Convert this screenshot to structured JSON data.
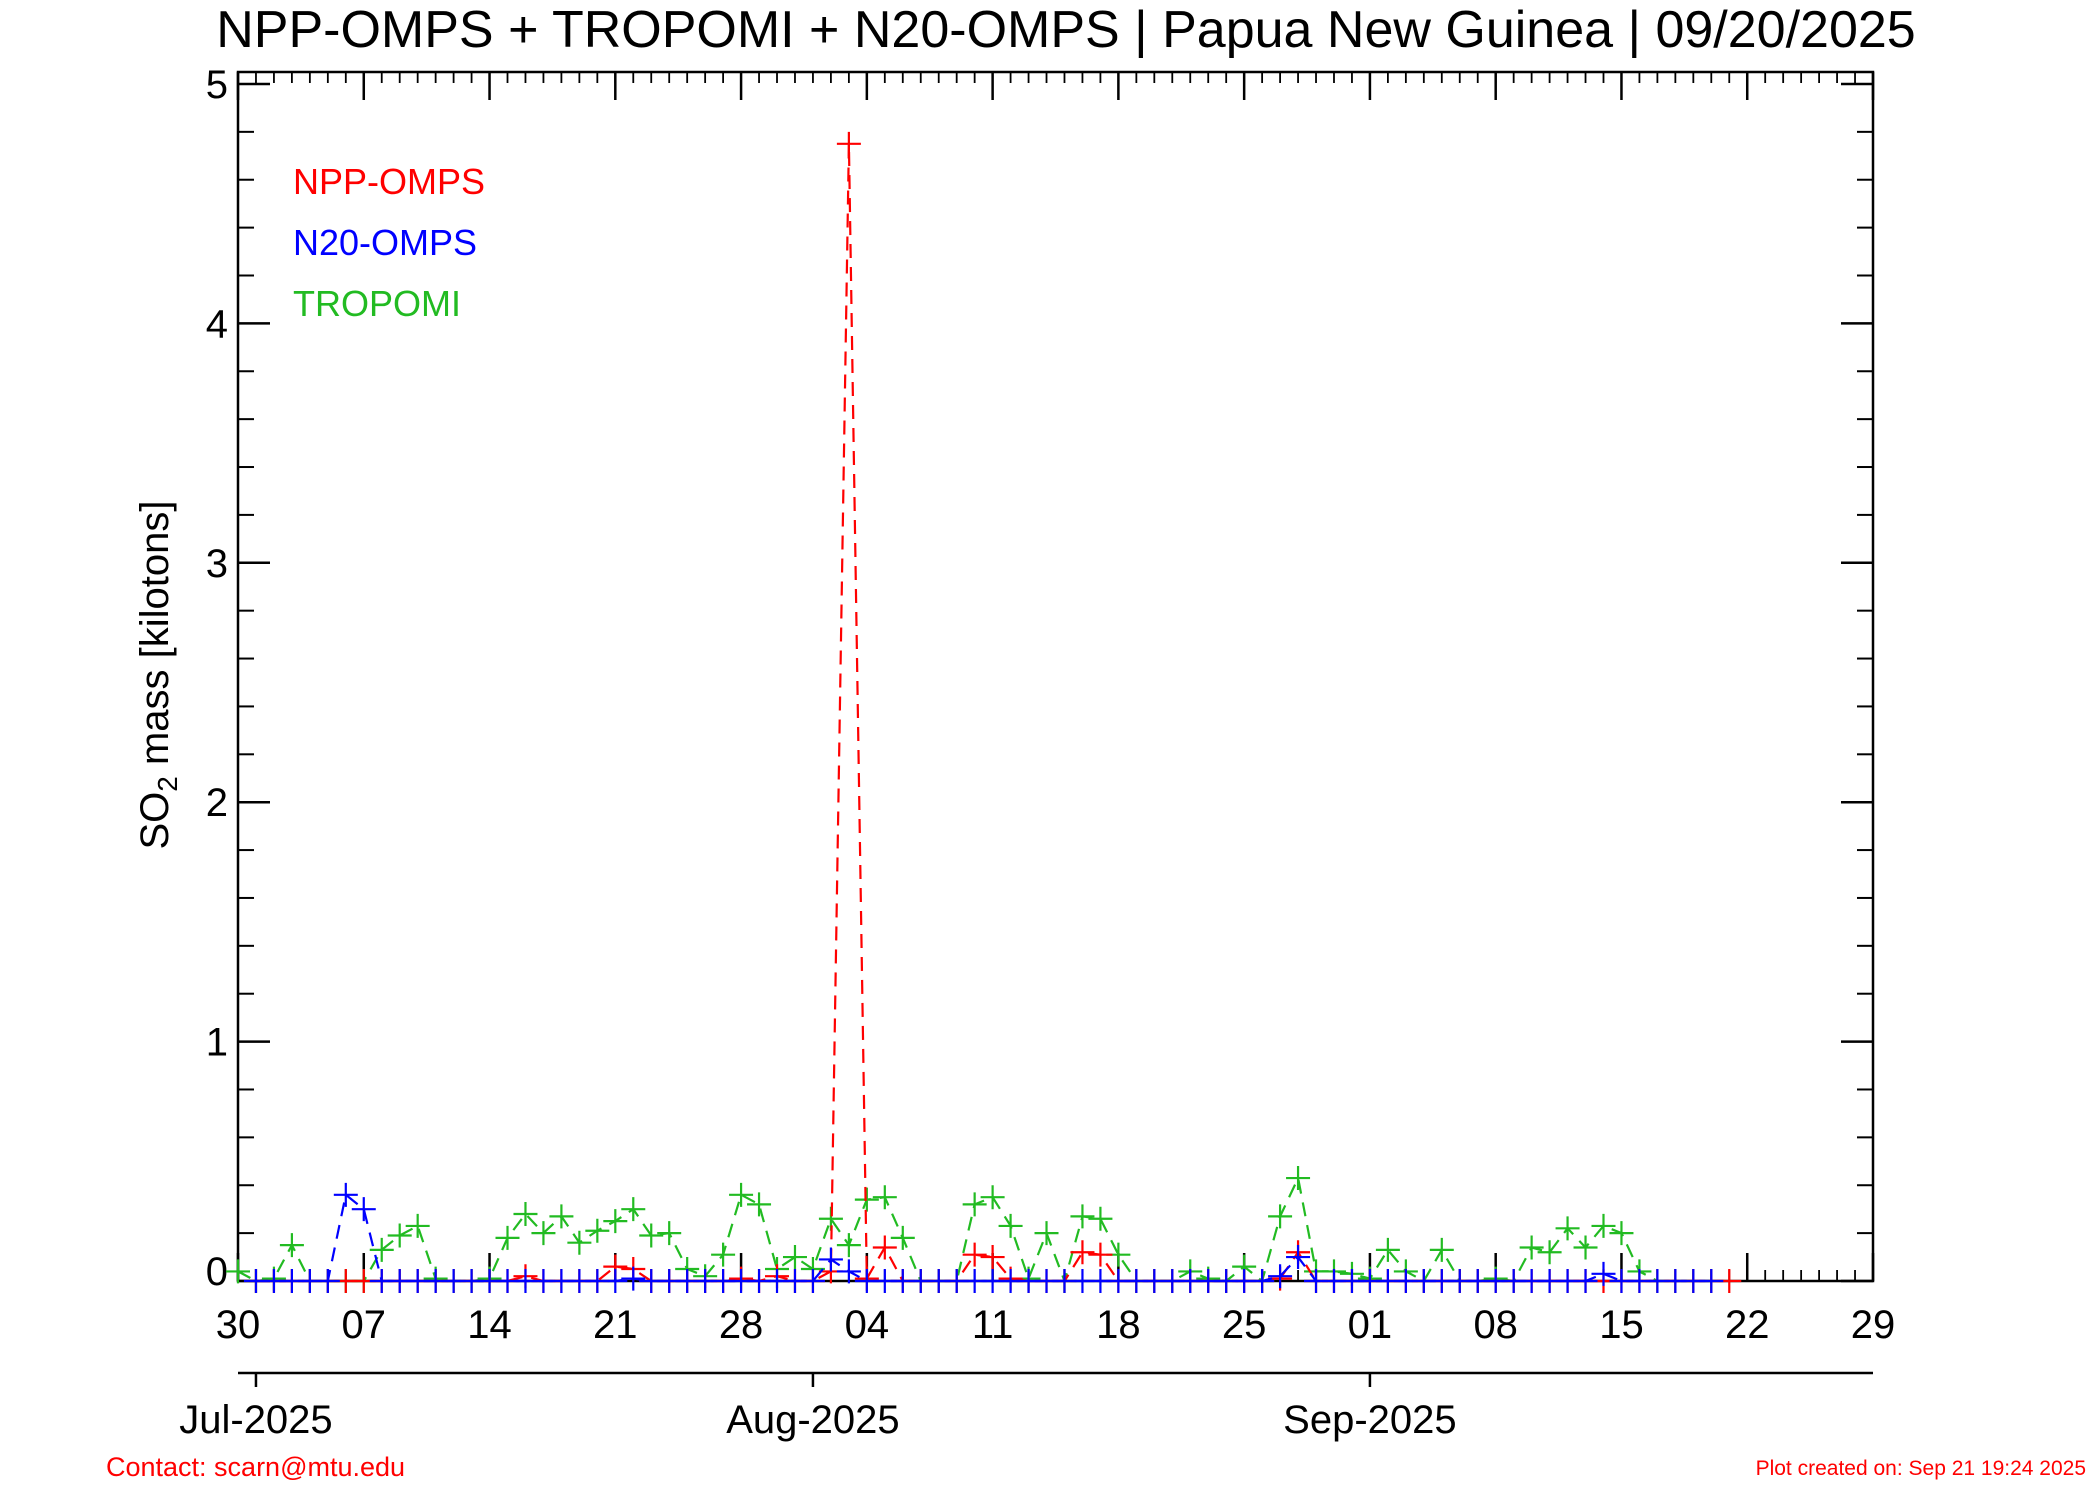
{
  "colors": {
    "npp": "#ff0000",
    "n20": "#0000ff",
    "tropomi": "#22bb22",
    "footer": "#ff0000"
  },
  "chart_data": {
    "type": "line",
    "title": "NPP-OMPS + TROPOMI + N20-OMPS | Papua New Guinea | 09/20/2025",
    "ylabel_main": "SO",
    "ylabel_sub": "2",
    "ylabel_rest": " mass [kilotons]",
    "ylim": [
      0,
      5.05
    ],
    "yticks": [
      "0",
      "1",
      "2",
      "3",
      "4",
      "5"
    ],
    "yticks_values": [
      0,
      1,
      2,
      3,
      4,
      5
    ],
    "xlim": [
      "2025-06-30",
      "2025-09-29"
    ],
    "xticks_day": [
      "30",
      "07",
      "14",
      "21",
      "28",
      "04",
      "11",
      "18",
      "25",
      "01",
      "08",
      "15",
      "22",
      "29"
    ],
    "xticks_dates": [
      "2025-06-30",
      "2025-07-07",
      "2025-07-14",
      "2025-07-21",
      "2025-07-28",
      "2025-08-04",
      "2025-08-11",
      "2025-08-18",
      "2025-08-25",
      "2025-09-01",
      "2025-09-08",
      "2025-09-15",
      "2025-09-22",
      "2025-09-29"
    ],
    "month_labels": [
      "Jul-2025",
      "Aug-2025",
      "Sep-2025"
    ],
    "month_dates": [
      "2025-07-01",
      "2025-08-01",
      "2025-09-01"
    ],
    "grid": false,
    "legend_position": "top-left",
    "series": [
      {
        "name": "NPP-OMPS",
        "color": "#ff0000",
        "points": [
          [
            "2025-07-01",
            0
          ],
          [
            "2025-07-02",
            0
          ],
          [
            "2025-07-03",
            0
          ],
          [
            "2025-07-04",
            0
          ],
          [
            "2025-07-05",
            0
          ],
          [
            "2025-07-06",
            0
          ],
          [
            "2025-07-07",
            0
          ],
          [
            "2025-07-08",
            0
          ],
          [
            "2025-07-09",
            0
          ],
          [
            "2025-07-10",
            0
          ],
          [
            "2025-07-11",
            0
          ],
          [
            "2025-07-12",
            0
          ],
          [
            "2025-07-13",
            0
          ],
          [
            "2025-07-14",
            0
          ],
          [
            "2025-07-15",
            0
          ],
          [
            "2025-07-16",
            0.02
          ],
          [
            "2025-07-17",
            0
          ],
          [
            "2025-07-18",
            0
          ],
          [
            "2025-07-19",
            0
          ],
          [
            "2025-07-20",
            0
          ],
          [
            "2025-07-21",
            0.06
          ],
          [
            "2025-07-22",
            0.05
          ],
          [
            "2025-07-23",
            0
          ],
          [
            "2025-07-24",
            0
          ],
          [
            "2025-07-25",
            0
          ],
          [
            "2025-07-26",
            0
          ],
          [
            "2025-07-27",
            0
          ],
          [
            "2025-07-28",
            0.01
          ],
          [
            "2025-07-29",
            0
          ],
          [
            "2025-07-30",
            0.02
          ],
          [
            "2025-07-31",
            0
          ],
          [
            "2025-08-01",
            0
          ],
          [
            "2025-08-02",
            0.04
          ],
          [
            "2025-08-03",
            4.75
          ],
          [
            "2025-08-04",
            0.01
          ],
          [
            "2025-08-05",
            0.14
          ],
          [
            "2025-08-06",
            0
          ],
          [
            "2025-08-07",
            0
          ],
          [
            "2025-08-08",
            0
          ],
          [
            "2025-08-09",
            0
          ],
          [
            "2025-08-10",
            0.11
          ],
          [
            "2025-08-11",
            0.1
          ],
          [
            "2025-08-12",
            0.01
          ],
          [
            "2025-08-13",
            0
          ],
          [
            "2025-08-14",
            0
          ],
          [
            "2025-08-15",
            0
          ],
          [
            "2025-08-16",
            0.12
          ],
          [
            "2025-08-17",
            0.11
          ],
          [
            "2025-08-18",
            0
          ],
          [
            "2025-08-19",
            0
          ],
          [
            "2025-08-20",
            0
          ],
          [
            "2025-08-21",
            0
          ],
          [
            "2025-08-22",
            0
          ],
          [
            "2025-08-23",
            0
          ],
          [
            "2025-08-24",
            0
          ],
          [
            "2025-08-25",
            0
          ],
          [
            "2025-08-26",
            0
          ],
          [
            "2025-08-27",
            0.01
          ],
          [
            "2025-08-28",
            0.12
          ],
          [
            "2025-08-29",
            0
          ],
          [
            "2025-08-30",
            0
          ],
          [
            "2025-08-31",
            0
          ],
          [
            "2025-09-01",
            0
          ],
          [
            "2025-09-02",
            0
          ],
          [
            "2025-09-03",
            0
          ],
          [
            "2025-09-04",
            0
          ],
          [
            "2025-09-05",
            0
          ],
          [
            "2025-09-06",
            0
          ],
          [
            "2025-09-07",
            0
          ],
          [
            "2025-09-08",
            0
          ],
          [
            "2025-09-09",
            0
          ],
          [
            "2025-09-10",
            0
          ],
          [
            "2025-09-11",
            0
          ],
          [
            "2025-09-12",
            0
          ],
          [
            "2025-09-13",
            0
          ],
          [
            "2025-09-14",
            0
          ],
          [
            "2025-09-15",
            0
          ],
          [
            "2025-09-16",
            0
          ],
          [
            "2025-09-17",
            0
          ],
          [
            "2025-09-18",
            0
          ],
          [
            "2025-09-19",
            0
          ],
          [
            "2025-09-20",
            0
          ],
          [
            "2025-09-21",
            0
          ]
        ]
      },
      {
        "name": "N20-OMPS",
        "color": "#0000ff",
        "points": [
          [
            "2025-07-01",
            0
          ],
          [
            "2025-07-02",
            0
          ],
          [
            "2025-07-03",
            0
          ],
          [
            "2025-07-04",
            0
          ],
          [
            "2025-07-05",
            0
          ],
          [
            "2025-07-06",
            0.36
          ],
          [
            "2025-07-07",
            0.3
          ],
          [
            "2025-07-08",
            0
          ],
          [
            "2025-07-09",
            0
          ],
          [
            "2025-07-10",
            0
          ],
          [
            "2025-07-11",
            0
          ],
          [
            "2025-07-12",
            0
          ],
          [
            "2025-07-13",
            0
          ],
          [
            "2025-07-14",
            0
          ],
          [
            "2025-07-15",
            0
          ],
          [
            "2025-07-16",
            0
          ],
          [
            "2025-07-17",
            0
          ],
          [
            "2025-07-18",
            0
          ],
          [
            "2025-07-19",
            0
          ],
          [
            "2025-07-20",
            0
          ],
          [
            "2025-07-21",
            0
          ],
          [
            "2025-07-22",
            0.01
          ],
          [
            "2025-07-23",
            0
          ],
          [
            "2025-07-24",
            0
          ],
          [
            "2025-07-25",
            0
          ],
          [
            "2025-07-26",
            0
          ],
          [
            "2025-07-27",
            0
          ],
          [
            "2025-07-28",
            0
          ],
          [
            "2025-07-29",
            0
          ],
          [
            "2025-07-30",
            0
          ],
          [
            "2025-07-31",
            0
          ],
          [
            "2025-08-01",
            0
          ],
          [
            "2025-08-02",
            0.09
          ],
          [
            "2025-08-03",
            0.04
          ],
          [
            "2025-08-04",
            0
          ],
          [
            "2025-08-05",
            0
          ],
          [
            "2025-08-06",
            0
          ],
          [
            "2025-08-07",
            0
          ],
          [
            "2025-08-08",
            0
          ],
          [
            "2025-08-09",
            0
          ],
          [
            "2025-08-10",
            0
          ],
          [
            "2025-08-11",
            0
          ],
          [
            "2025-08-12",
            0
          ],
          [
            "2025-08-13",
            0
          ],
          [
            "2025-08-14",
            0
          ],
          [
            "2025-08-15",
            0
          ],
          [
            "2025-08-16",
            0
          ],
          [
            "2025-08-17",
            0
          ],
          [
            "2025-08-18",
            0
          ],
          [
            "2025-08-19",
            0
          ],
          [
            "2025-08-20",
            0
          ],
          [
            "2025-08-21",
            0
          ],
          [
            "2025-08-22",
            0
          ],
          [
            "2025-08-23",
            0
          ],
          [
            "2025-08-24",
            0
          ],
          [
            "2025-08-25",
            0
          ],
          [
            "2025-08-26",
            0
          ],
          [
            "2025-08-27",
            0.02
          ],
          [
            "2025-08-28",
            0.1
          ],
          [
            "2025-08-29",
            0
          ],
          [
            "2025-08-30",
            0
          ],
          [
            "2025-08-31",
            0
          ],
          [
            "2025-09-01",
            0
          ],
          [
            "2025-09-02",
            0
          ],
          [
            "2025-09-03",
            0
          ],
          [
            "2025-09-04",
            0
          ],
          [
            "2025-09-05",
            0
          ],
          [
            "2025-09-06",
            0
          ],
          [
            "2025-09-07",
            0
          ],
          [
            "2025-09-08",
            0
          ],
          [
            "2025-09-09",
            0
          ],
          [
            "2025-09-10",
            0
          ],
          [
            "2025-09-11",
            0
          ],
          [
            "2025-09-12",
            0
          ],
          [
            "2025-09-13",
            0
          ],
          [
            "2025-09-14",
            0.03
          ],
          [
            "2025-09-15",
            0
          ],
          [
            "2025-09-16",
            0
          ],
          [
            "2025-09-17",
            0
          ],
          [
            "2025-09-18",
            0
          ],
          [
            "2025-09-19",
            0
          ],
          [
            "2025-09-20",
            0
          ]
        ]
      },
      {
        "name": "TROPOMI",
        "color": "#22bb22",
        "points": [
          [
            "2025-06-30",
            0.04
          ],
          [
            "2025-07-01",
            0
          ],
          [
            "2025-07-02",
            0.01
          ],
          [
            "2025-07-03",
            0.15
          ],
          [
            "2025-07-04",
            0
          ],
          [
            "2025-07-05",
            0
          ],
          [
            "2025-07-06",
            0
          ],
          [
            "2025-07-07",
            0
          ],
          [
            "2025-07-08",
            0.13
          ],
          [
            "2025-07-09",
            0.19
          ],
          [
            "2025-07-10",
            0.23
          ],
          [
            "2025-07-11",
            0.01
          ],
          [
            "2025-07-12",
            0
          ],
          [
            "2025-07-13",
            0
          ],
          [
            "2025-07-14",
            0.01
          ],
          [
            "2025-07-15",
            0.18
          ],
          [
            "2025-07-16",
            0.28
          ],
          [
            "2025-07-17",
            0.2
          ],
          [
            "2025-07-18",
            0.27
          ],
          [
            "2025-07-19",
            0.16
          ],
          [
            "2025-07-20",
            0.21
          ],
          [
            "2025-07-21",
            0.25
          ],
          [
            "2025-07-22",
            0.3
          ],
          [
            "2025-07-23",
            0.19
          ],
          [
            "2025-07-24",
            0.2
          ],
          [
            "2025-07-25",
            0.05
          ],
          [
            "2025-07-26",
            0.02
          ],
          [
            "2025-07-27",
            0.11
          ],
          [
            "2025-07-28",
            0.36
          ],
          [
            "2025-07-29",
            0.32
          ],
          [
            "2025-07-30",
            0.05
          ],
          [
            "2025-07-31",
            0.1
          ],
          [
            "2025-08-01",
            0.05
          ],
          [
            "2025-08-02",
            0.26
          ],
          [
            "2025-08-03",
            0.15
          ],
          [
            "2025-08-04",
            0.34
          ],
          [
            "2025-08-05",
            0.35
          ],
          [
            "2025-08-06",
            0.18
          ],
          [
            "2025-08-07",
            0
          ],
          [
            "2025-08-08",
            0
          ],
          [
            "2025-08-09",
            0
          ],
          [
            "2025-08-10",
            0.32
          ],
          [
            "2025-08-11",
            0.35
          ],
          [
            "2025-08-12",
            0.23
          ],
          [
            "2025-08-13",
            0.01
          ],
          [
            "2025-08-14",
            0.2
          ],
          [
            "2025-08-15",
            0
          ],
          [
            "2025-08-16",
            0.27
          ],
          [
            "2025-08-17",
            0.26
          ],
          [
            "2025-08-18",
            0.11
          ],
          [
            "2025-08-19",
            0
          ],
          [
            "2025-08-20",
            0
          ],
          [
            "2025-08-21",
            0
          ],
          [
            "2025-08-22",
            0.04
          ],
          [
            "2025-08-23",
            0.01
          ],
          [
            "2025-08-24",
            0
          ],
          [
            "2025-08-25",
            0.06
          ],
          [
            "2025-08-26",
            0
          ],
          [
            "2025-08-27",
            0.27
          ],
          [
            "2025-08-28",
            0.43
          ],
          [
            "2025-08-29",
            0.04
          ],
          [
            "2025-08-30",
            0.04
          ],
          [
            "2025-08-31",
            0.03
          ],
          [
            "2025-09-01",
            0.01
          ],
          [
            "2025-09-02",
            0.13
          ],
          [
            "2025-09-03",
            0.04
          ],
          [
            "2025-09-04",
            0
          ],
          [
            "2025-09-05",
            0.13
          ],
          [
            "2025-09-06",
            0
          ],
          [
            "2025-09-07",
            0
          ],
          [
            "2025-09-08",
            0.01
          ],
          [
            "2025-09-09",
            0
          ],
          [
            "2025-09-10",
            0.14
          ],
          [
            "2025-09-11",
            0.12
          ],
          [
            "2025-09-12",
            0.22
          ],
          [
            "2025-09-13",
            0.14
          ],
          [
            "2025-09-14",
            0.23
          ],
          [
            "2025-09-15",
            0.2
          ],
          [
            "2025-09-16",
            0.04
          ],
          [
            "2025-09-17",
            0
          ],
          [
            "2025-09-18",
            0
          ],
          [
            "2025-09-19",
            0
          ],
          [
            "2025-09-20",
            0
          ]
        ]
      }
    ]
  },
  "footer": {
    "contact": "Contact: scarn@mtu.edu",
    "created": "Plot created on: Sep 21 19:24 2025"
  }
}
